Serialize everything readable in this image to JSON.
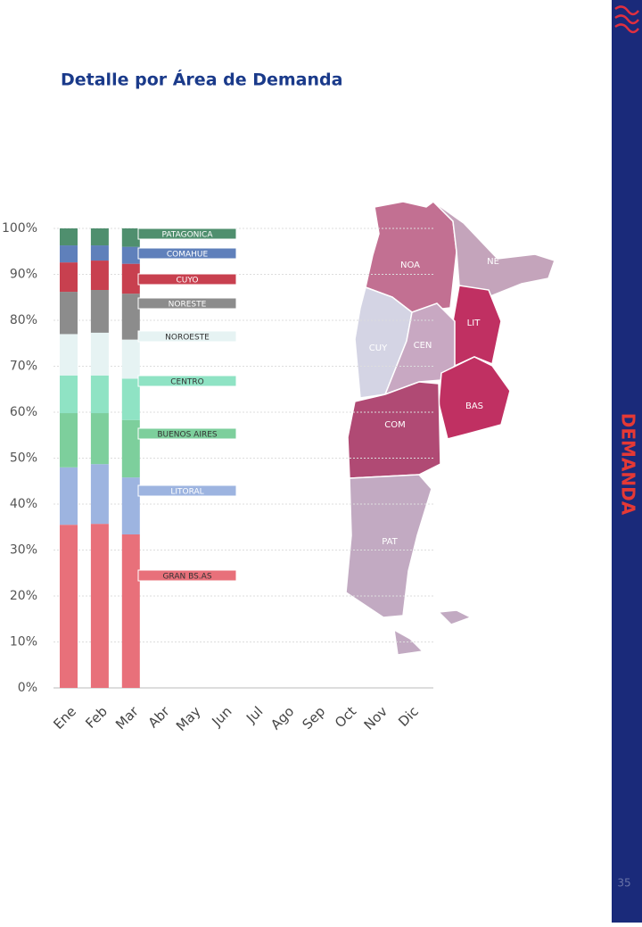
{
  "chart_data": {
    "type": "stacked_bar",
    "title": "Detalle por Área de Demanda",
    "categories": [
      "Ene",
      "Feb",
      "Mar",
      "Abr",
      "May",
      "Jun",
      "Jul",
      "Ago",
      "Sep",
      "Oct",
      "Nov",
      "Dic"
    ],
    "series": [
      {
        "name": "GRAN BS.AS",
        "color": "#e8707a",
        "values": [
          35.5,
          35.7,
          33.4,
          null,
          null,
          null,
          null,
          null,
          null,
          null,
          null,
          null
        ]
      },
      {
        "name": "LITORAL",
        "color": "#9db4e0",
        "values": [
          12.5,
          13,
          12.4,
          null,
          null,
          null,
          null,
          null,
          null,
          null,
          null,
          null
        ]
      },
      {
        "name": "BUENOS AIRES",
        "color": "#7dcf9c",
        "values": [
          11.8,
          11.1,
          12.5,
          null,
          null,
          null,
          null,
          null,
          null,
          null,
          null,
          null
        ]
      },
      {
        "name": "CENTRO",
        "color": "#8fe3c4",
        "values": [
          8.2,
          8.2,
          9,
          null,
          null,
          null,
          null,
          null,
          null,
          null,
          null,
          null
        ]
      },
      {
        "name": "NOROESTE",
        "color": "#e6f3f3",
        "values": [
          9,
          9.3,
          8.5,
          null,
          null,
          null,
          null,
          null,
          null,
          null,
          null,
          null
        ]
      },
      {
        "name": "NORESTE",
        "color": "#8c8c8c",
        "values": [
          9.2,
          9.3,
          10,
          null,
          null,
          null,
          null,
          null,
          null,
          null,
          null,
          null
        ]
      },
      {
        "name": "CUYO",
        "color": "#c8404f",
        "values": [
          6.4,
          6.4,
          6.5,
          null,
          null,
          null,
          null,
          null,
          null,
          null,
          null,
          null
        ]
      },
      {
        "name": "COMAHUE",
        "color": "#5f80bb",
        "values": [
          3.7,
          3.3,
          3.7,
          null,
          null,
          null,
          null,
          null,
          null,
          null,
          null,
          null
        ]
      },
      {
        "name": "PATAGONICA",
        "color": "#4f8f6e",
        "values": [
          3.7,
          3.7,
          4,
          null,
          null,
          null,
          null,
          null,
          null,
          null,
          null,
          null
        ]
      }
    ],
    "ylim": [
      0,
      100
    ],
    "yticks": [
      {
        "value": 0,
        "label": "0%"
      },
      {
        "value": 10,
        "label": "10%"
      },
      {
        "value": 20,
        "label": "20%"
      },
      {
        "value": 30,
        "label": "30%"
      },
      {
        "value": 40,
        "label": "40%"
      },
      {
        "value": 50,
        "label": "50%"
      },
      {
        "value": 60,
        "label": "60%"
      },
      {
        "value": 70,
        "label": "70%"
      },
      {
        "value": 80,
        "label": "80%"
      },
      {
        "value": 90,
        "label": "90%"
      },
      {
        "value": 100,
        "label": "100%"
      }
    ],
    "grid": true
  },
  "map": {
    "labels": [
      "NOA",
      "NE",
      "LIT",
      "CUY",
      "CEN",
      "BAS",
      "COM",
      "PAT"
    ]
  },
  "sidebar": {
    "label": "DEMANDA",
    "page_number": "35"
  }
}
